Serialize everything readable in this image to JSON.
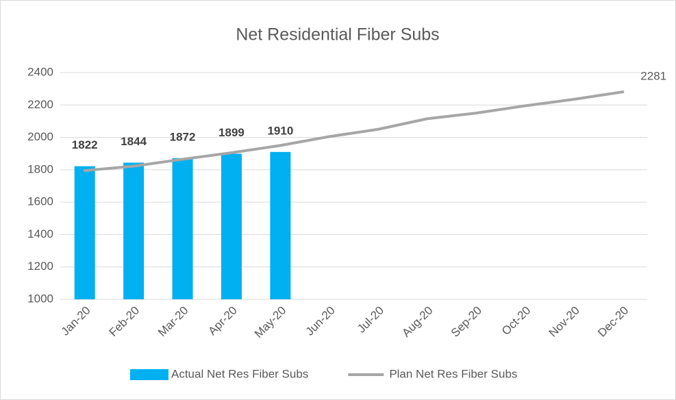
{
  "chart_data": {
    "type": "bar",
    "title": "Net Residential Fiber Subs",
    "categories": [
      "Jan-20",
      "Feb-20",
      "Mar-20",
      "Apr-20",
      "May-20",
      "Jun-20",
      "Jul-20",
      "Aug-20",
      "Sep-20",
      "Oct-20",
      "Nov-20",
      "Dec-20"
    ],
    "series": [
      {
        "name": "Actual Net Res Fiber Subs",
        "type": "bar",
        "color": "#00b0f0",
        "data_labels": "all",
        "values": [
          1822,
          1844,
          1872,
          1899,
          1910,
          null,
          null,
          null,
          null,
          null,
          null,
          null
        ]
      },
      {
        "name": "Plan Net Res Fiber Subs",
        "type": "line",
        "color": "#a6a6a6",
        "data_labels": "last",
        "values": [
          1795,
          1822,
          1865,
          1905,
          1950,
          2005,
          2050,
          2115,
          2150,
          2195,
          2235,
          2281
        ]
      }
    ],
    "ylim": [
      1000,
      2400
    ],
    "yticks": [
      1000,
      1200,
      1400,
      1600,
      1800,
      2000,
      2200,
      2400
    ],
    "grid": true,
    "legend": "bottom"
  }
}
